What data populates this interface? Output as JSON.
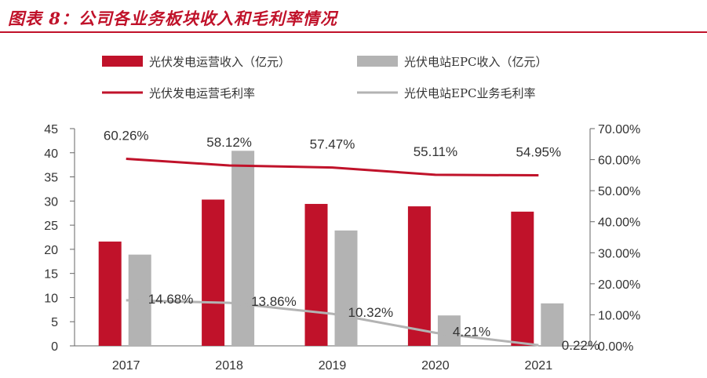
{
  "title": "图表 8：公司各业务板块收入和毛利率情况",
  "colors": {
    "series1": "#c0122a",
    "series2": "#b3b3b3",
    "line1": "#c0122a",
    "line2": "#b3b3b3",
    "title": "#c0122a"
  },
  "chart_data": {
    "type": "bar",
    "categories": [
      "2017",
      "2018",
      "2019",
      "2020",
      "2021"
    ],
    "series": [
      {
        "name": "光伏发电运营收入（亿元）",
        "type": "bar",
        "axis": "left",
        "values": [
          21.6,
          30.3,
          29.4,
          28.9,
          27.8
        ]
      },
      {
        "name": "光伏电站EPC收入（亿元）",
        "type": "bar",
        "axis": "left",
        "values": [
          18.9,
          40.4,
          23.9,
          6.3,
          8.8
        ]
      },
      {
        "name": "光伏发电运营毛利率",
        "type": "line",
        "axis": "right",
        "values": [
          60.26,
          58.12,
          57.47,
          55.11,
          54.95
        ]
      },
      {
        "name": "光伏电站EPC业务毛利率",
        "type": "line",
        "axis": "right",
        "values": [
          14.68,
          13.86,
          10.32,
          4.21,
          0.22
        ]
      }
    ],
    "line_labels": {
      "operation": [
        "60.26%",
        "58.12%",
        "57.47%",
        "55.11%",
        "54.95%"
      ],
      "epc": [
        "14.68%",
        "13.86%",
        "10.32%",
        "4.21%",
        "0.22%"
      ]
    },
    "left_axis": {
      "ylim": [
        0,
        45
      ],
      "ticks": [
        "0",
        "5",
        "10",
        "15",
        "20",
        "25",
        "30",
        "35",
        "40",
        "45"
      ]
    },
    "right_axis": {
      "ylim": [
        0,
        70
      ],
      "ticks": [
        "0.00%",
        "10.00%",
        "20.00%",
        "30.00%",
        "40.00%",
        "50.00%",
        "60.00%",
        "70.00%"
      ]
    },
    "legend_position": "top",
    "grid": false
  }
}
